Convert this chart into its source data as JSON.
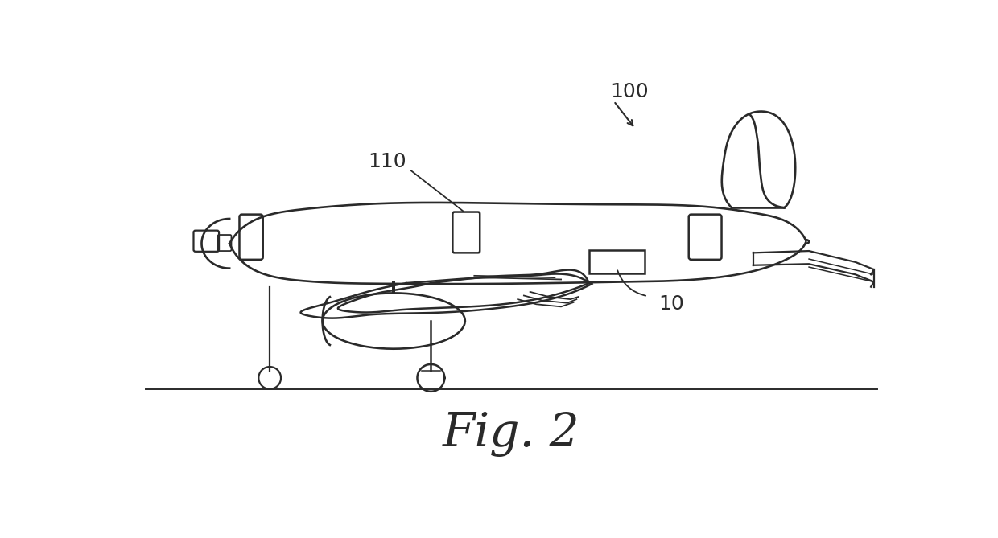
{
  "title": "Fig. 2",
  "label_100": "100",
  "label_110": "110",
  "label_10": "10",
  "bg_color": "#ffffff",
  "line_color": "#2a2a2a",
  "line_width": 1.6,
  "fig_width": 12.4,
  "fig_height": 6.69,
  "dpi": 100
}
